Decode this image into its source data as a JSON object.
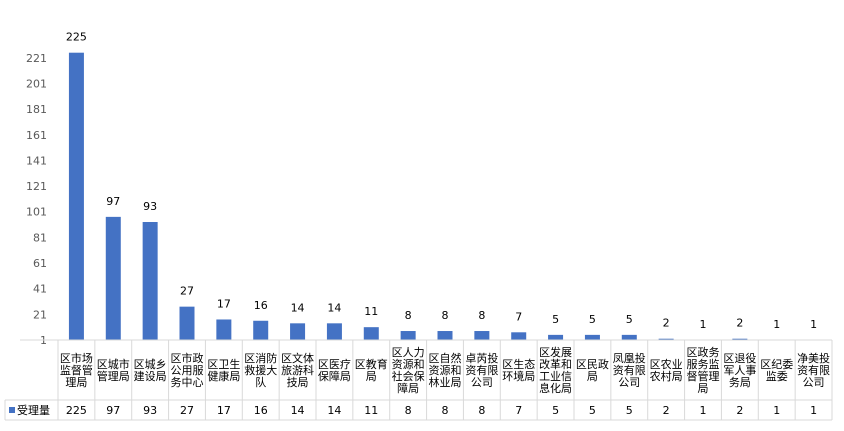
{
  "chart_data": {
    "type": "bar",
    "categories": [
      "区市场监督管理局",
      "区城市管理局",
      "区城乡建设局",
      "区市政公用服务中心",
      "区卫生健康局",
      "区消防救援大队",
      "区文体旅游科技局",
      "区医疗保障局",
      "区教育局",
      "区人力资源和社会保障局",
      "区自然资源和林业局",
      "卓芮投资有限公司",
      "区生态环境局",
      "区发展改革和工业信息化局",
      "区民政局",
      "凤凰投资有限公司",
      "区农业农村局",
      "区政务服务监督管理局",
      "区退役军人事务局",
      "区纪委监委",
      "净美投资有限公司"
    ],
    "category_lines": [
      [
        "区市场",
        "监督管",
        "理局"
      ],
      [
        "区城市",
        "管理局"
      ],
      [
        "区城乡",
        "建设局"
      ],
      [
        "区市政",
        "公用服",
        "务中心"
      ],
      [
        "区卫生",
        "健康局"
      ],
      [
        "区消防",
        "救援大",
        "队"
      ],
      [
        "区文体",
        "旅游科",
        "技局"
      ],
      [
        "区医疗",
        "保障局"
      ],
      [
        "区教育",
        "局"
      ],
      [
        "区人力",
        "资源和",
        "社会保",
        "障局"
      ],
      [
        "区自然",
        "资源和",
        "林业局"
      ],
      [
        "卓芮投",
        "资有限",
        "公司"
      ],
      [
        "区生态",
        "环境局"
      ],
      [
        "区发展",
        "改革和",
        "工业信",
        "息化局"
      ],
      [
        "区民政",
        "局"
      ],
      [
        "凤凰投",
        "资有限",
        "公司"
      ],
      [
        "区农业",
        "农村局"
      ],
      [
        "区政务",
        "服务监",
        "督管理",
        "局"
      ],
      [
        "区退役",
        "军人事",
        "务局"
      ],
      [
        "区纪委",
        "监委"
      ],
      [
        "净美投",
        "资有限",
        "公司"
      ]
    ],
    "series": [
      {
        "name": "受理量",
        "values": [
          225,
          97,
          93,
          27,
          17,
          16,
          14,
          14,
          11,
          8,
          8,
          8,
          7,
          5,
          5,
          5,
          2,
          1,
          2,
          1,
          1
        ]
      }
    ],
    "y_ticks": [
      "1",
      "21",
      "41",
      "61",
      "81",
      "101",
      "121",
      "141",
      "161",
      "181",
      "201",
      "221"
    ],
    "ylim": [
      1,
      231
    ],
    "title": "",
    "xlabel": "",
    "ylabel": "",
    "grid": false,
    "legend_placement": "data-table-row-left",
    "bar_color": "#4472C4",
    "axis_color": "#D9D9D9",
    "text_color": "#000000",
    "tick_color": "#595959"
  }
}
